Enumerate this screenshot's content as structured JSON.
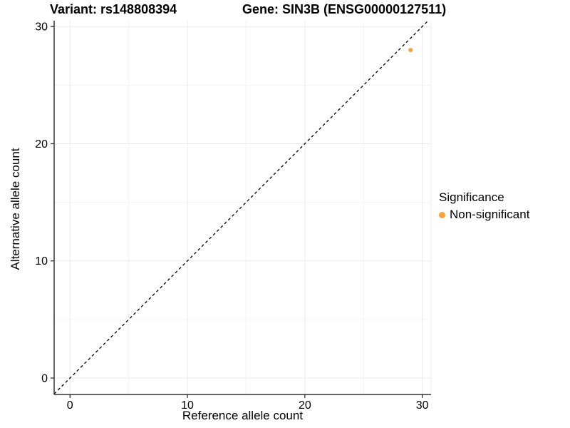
{
  "chart_data": {
    "type": "scatter",
    "title_left": "Variant: rs148808394",
    "title_right": "Gene: SIN3B (ENSG00000127511)",
    "xlabel": "Reference allele count",
    "ylabel": "Alternative allele count",
    "xlim": [
      -1.35,
      30.75
    ],
    "ylim": [
      -1.4,
      30.5
    ],
    "x_ticks": [
      0,
      10,
      20,
      30
    ],
    "y_ticks": [
      0,
      10,
      20,
      30
    ],
    "x_minor_ticks": [
      5,
      15,
      25
    ],
    "y_minor_ticks": [
      5,
      15,
      25
    ],
    "grid": true,
    "points": [
      {
        "x": 29,
        "y": 28,
        "series": "Non-significant"
      }
    ],
    "reference_line": {
      "slope": 1,
      "intercept": 0,
      "style": "dashed",
      "color": "#000000"
    },
    "legend": {
      "title": "Significance",
      "position": "right",
      "items": [
        {
          "label": "Non-significant",
          "color": "#F9A242"
        }
      ]
    },
    "colors": {
      "background": "#ffffff",
      "grid_major": "#ebebeb",
      "grid_minor": "#f3f3f3",
      "panel_edge": "#ececec",
      "axis_line": "#333333",
      "tick_mark": "#333333",
      "tick_text": "#000000",
      "point": "#F9A242"
    }
  }
}
